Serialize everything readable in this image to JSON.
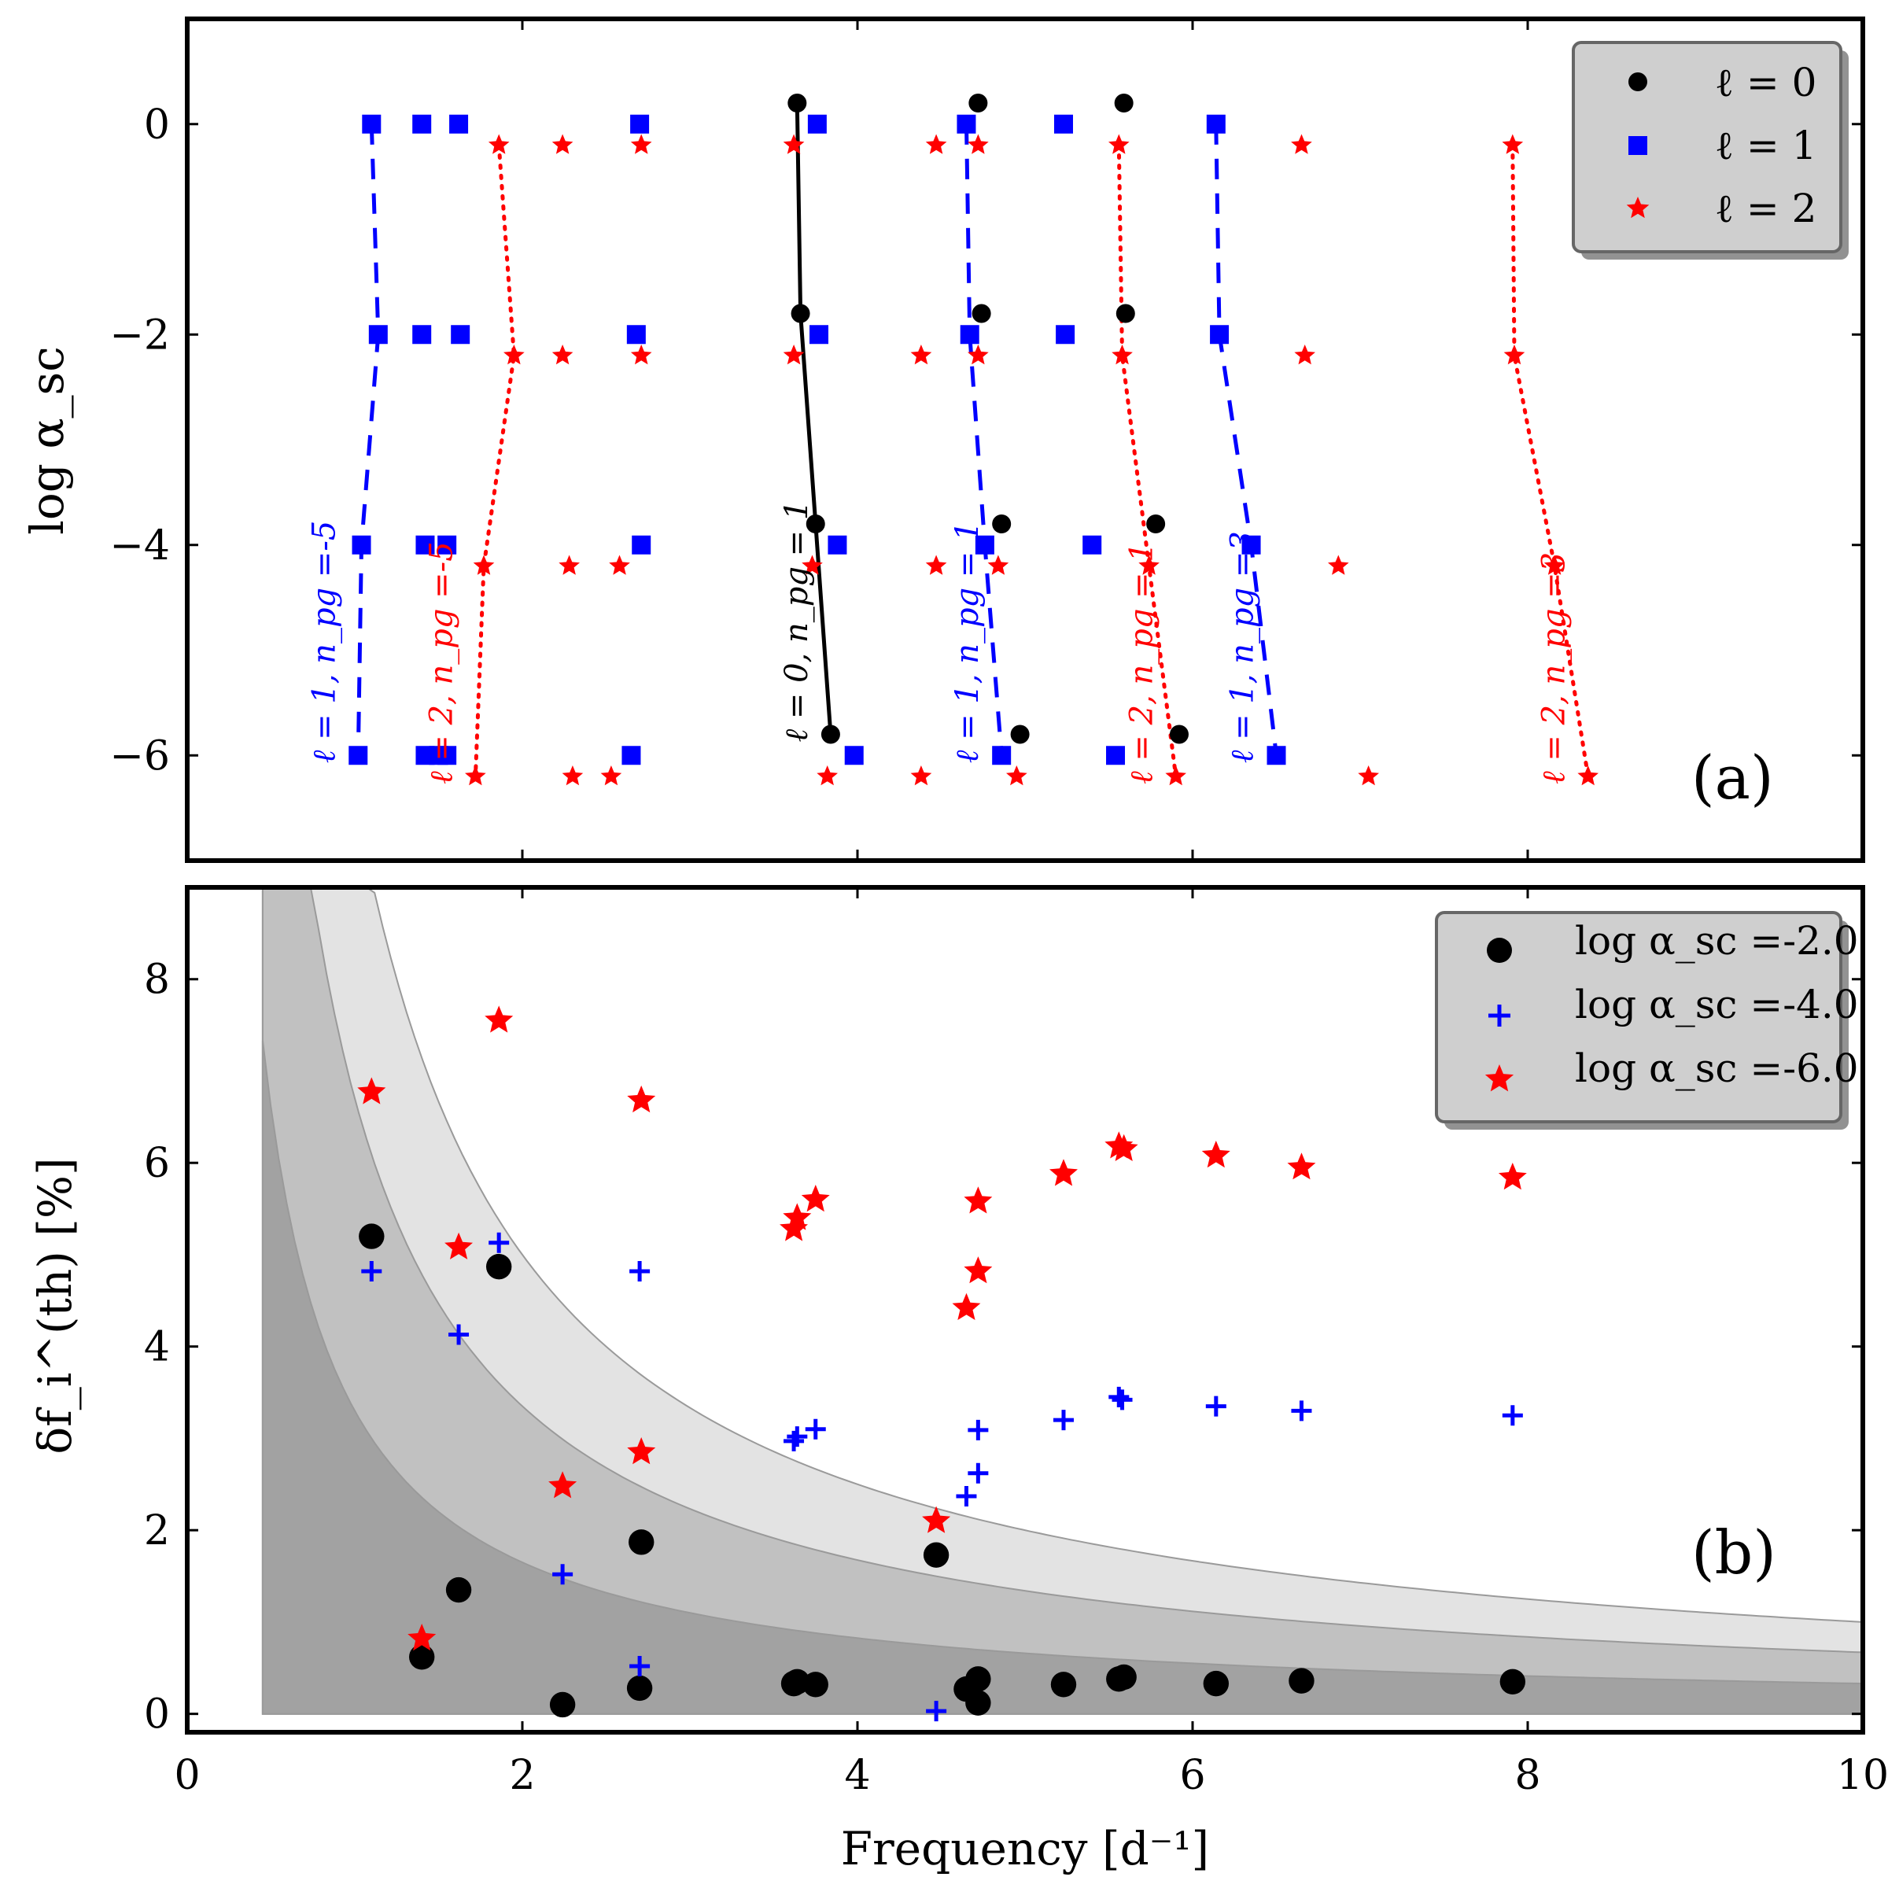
{
  "chart_data": [
    {
      "panel": "a",
      "type": "scatter",
      "tag": "(a)",
      "xlim": [
        0,
        10
      ],
      "ylim": [
        -7,
        1
      ],
      "xticks": [
        0,
        2,
        4,
        6,
        8,
        10
      ],
      "yticks": [
        0,
        -2,
        -4,
        -6
      ],
      "ytick_labels": [
        "0",
        "−2",
        "−4",
        "−6"
      ],
      "ylabel": "log α_sc",
      "legend": [
        "ℓ = 0",
        "ℓ = 1",
        "ℓ = 2"
      ],
      "legend_position": "top-right",
      "series": [
        {
          "name": "ℓ = 0",
          "marker": "circle",
          "color": "#000000",
          "points": [
            [
              3.64,
              0.2
            ],
            [
              4.72,
              0.2
            ],
            [
              5.59,
              0.2
            ],
            [
              3.66,
              -1.8
            ],
            [
              4.74,
              -1.8
            ],
            [
              5.6,
              -1.8
            ],
            [
              3.75,
              -3.8
            ],
            [
              4.86,
              -3.8
            ],
            [
              5.78,
              -3.8
            ],
            [
              3.84,
              -5.8
            ],
            [
              4.97,
              -5.8
            ],
            [
              5.92,
              -5.8
            ]
          ]
        },
        {
          "name": "ℓ = 1",
          "marker": "square",
          "color": "#0000ff",
          "points": [
            [
              1.1,
              0
            ],
            [
              1.4,
              0
            ],
            [
              1.62,
              0
            ],
            [
              2.7,
              0
            ],
            [
              3.76,
              0
            ],
            [
              4.65,
              0
            ],
            [
              5.23,
              0
            ],
            [
              6.14,
              0
            ],
            [
              1.14,
              -2
            ],
            [
              1.4,
              -2
            ],
            [
              1.63,
              -2
            ],
            [
              2.68,
              -2
            ],
            [
              3.77,
              -2
            ],
            [
              4.67,
              -2
            ],
            [
              5.24,
              -2
            ],
            [
              6.16,
              -2
            ],
            [
              1.04,
              -4
            ],
            [
              1.42,
              -4
            ],
            [
              1.55,
              -4
            ],
            [
              2.71,
              -4
            ],
            [
              3.88,
              -4
            ],
            [
              4.76,
              -4
            ],
            [
              5.4,
              -4
            ],
            [
              6.35,
              -4
            ],
            [
              1.02,
              -6
            ],
            [
              1.42,
              -6
            ],
            [
              1.5,
              -6
            ],
            [
              1.55,
              -6
            ],
            [
              2.65,
              -6
            ],
            [
              3.98,
              -6
            ],
            [
              4.86,
              -6
            ],
            [
              5.54,
              -6
            ],
            [
              6.5,
              -6
            ]
          ]
        },
        {
          "name": "ℓ = 2",
          "marker": "star",
          "color": "#ff0000",
          "points": [
            [
              1.86,
              -0.2
            ],
            [
              2.24,
              -0.2
            ],
            [
              2.71,
              -0.2
            ],
            [
              3.62,
              -0.2
            ],
            [
              4.47,
              -0.2
            ],
            [
              4.72,
              -0.2
            ],
            [
              5.56,
              -0.2
            ],
            [
              6.65,
              -0.2
            ],
            [
              7.91,
              -0.2
            ],
            [
              1.95,
              -2.2
            ],
            [
              2.24,
              -2.2
            ],
            [
              2.71,
              -2.2
            ],
            [
              3.62,
              -2.2
            ],
            [
              4.38,
              -2.2
            ],
            [
              4.72,
              -2.2
            ],
            [
              5.58,
              -2.2
            ],
            [
              6.67,
              -2.2
            ],
            [
              7.92,
              -2.2
            ],
            [
              1.77,
              -4.2
            ],
            [
              2.28,
              -4.2
            ],
            [
              2.58,
              -4.2
            ],
            [
              3.73,
              -4.2
            ],
            [
              4.47,
              -4.2
            ],
            [
              4.84,
              -4.2
            ],
            [
              5.74,
              -4.2
            ],
            [
              6.87,
              -4.2
            ],
            [
              8.16,
              -4.2
            ],
            [
              1.72,
              -6.2
            ],
            [
              2.3,
              -6.2
            ],
            [
              2.53,
              -6.2
            ],
            [
              3.82,
              -6.2
            ],
            [
              4.38,
              -6.2
            ],
            [
              4.95,
              -6.2
            ],
            [
              5.9,
              -6.2
            ],
            [
              7.05,
              -6.2
            ],
            [
              8.36,
              -6.2
            ]
          ]
        }
      ],
      "tracks": [
        {
          "label": "ℓ = 0, n_pg = 1",
          "color": "#000000",
          "style": "solid",
          "points": [
            [
              3.64,
              0.2
            ],
            [
              3.66,
              -1.8
            ],
            [
              3.75,
              -3.8
            ],
            [
              3.84,
              -5.8
            ]
          ]
        },
        {
          "label": "ℓ = 1, n_pg =-5",
          "color": "#0000ff",
          "style": "dashed",
          "points": [
            [
              1.1,
              0
            ],
            [
              1.14,
              -2
            ],
            [
              1.04,
              -4
            ],
            [
              1.02,
              -6
            ]
          ]
        },
        {
          "label": "ℓ = 1, n_pg = 1",
          "color": "#0000ff",
          "style": "dashed",
          "points": [
            [
              4.65,
              0
            ],
            [
              4.67,
              -2
            ],
            [
              4.76,
              -4
            ],
            [
              4.86,
              -6
            ]
          ]
        },
        {
          "label": "ℓ = 1, n_pg =3",
          "color": "#0000ff",
          "style": "dashed",
          "points": [
            [
              6.14,
              0
            ],
            [
              6.16,
              -2
            ],
            [
              6.35,
              -4
            ],
            [
              6.5,
              -6
            ]
          ]
        },
        {
          "label": "ℓ = 2, n_pg =-5",
          "color": "#ff0000",
          "style": "dotted",
          "points": [
            [
              1.86,
              -0.2
            ],
            [
              1.95,
              -2.2
            ],
            [
              1.77,
              -4.2
            ],
            [
              1.72,
              -6.2
            ]
          ]
        },
        {
          "label": "ℓ = 2, n_pg = 1",
          "color": "#ff0000",
          "style": "dotted",
          "points": [
            [
              5.56,
              -0.2
            ],
            [
              5.58,
              -2.2
            ],
            [
              5.74,
              -4.2
            ],
            [
              5.9,
              -6.2
            ]
          ]
        },
        {
          "label": "ℓ = 2, n_pg =3",
          "color": "#ff0000",
          "style": "dotted",
          "points": [
            [
              7.91,
              -0.2
            ],
            [
              7.92,
              -2.2
            ],
            [
              8.16,
              -4.2
            ],
            [
              8.36,
              -6.2
            ]
          ]
        }
      ]
    },
    {
      "panel": "b",
      "type": "scatter",
      "tag": "(b)",
      "xlim": [
        0,
        10
      ],
      "ylim": [
        -0.2,
        9
      ],
      "xticks": [
        0,
        2,
        4,
        6,
        8,
        10
      ],
      "yticks": [
        0,
        2,
        4,
        6,
        8
      ],
      "ytick_labels": [
        "0",
        "2",
        "4",
        "6",
        "8"
      ],
      "xlabel": "Frequency [d⁻¹]",
      "ylabel": "δf_i^(th) [%]",
      "legend": [
        "log α_sc =-2.0",
        "log α_sc =-4.0",
        "log α_sc =-6.0"
      ],
      "legend_position": "top-right",
      "bands": {
        "x_start": 0.45,
        "levels": [
          0.033,
          0.067,
          0.1
        ],
        "model": "y = level / x (percent)",
        "colors": [
          "#a2a2a2",
          "#c1c1c1",
          "#e3e3e3"
        ]
      },
      "series": [
        {
          "name": "log α_sc =-2.0",
          "marker": "circle",
          "color": "#000000",
          "points": [
            [
              1.1,
              5.2
            ],
            [
              1.86,
              4.87
            ],
            [
              1.4,
              0.62
            ],
            [
              1.62,
              1.35
            ],
            [
              2.24,
              0.1
            ],
            [
              2.71,
              1.87
            ],
            [
              2.7,
              0.28
            ],
            [
              3.62,
              0.33
            ],
            [
              3.64,
              0.35
            ],
            [
              3.75,
              0.32
            ],
            [
              4.47,
              1.73
            ],
            [
              4.65,
              0.27
            ],
            [
              4.72,
              0.12
            ],
            [
              4.72,
              0.38
            ],
            [
              5.23,
              0.32
            ],
            [
              5.56,
              0.38
            ],
            [
              5.59,
              0.4
            ],
            [
              6.14,
              0.33
            ],
            [
              6.65,
              0.36
            ],
            [
              7.91,
              0.35
            ]
          ]
        },
        {
          "name": "log α_sc =-4.0",
          "marker": "plus",
          "color": "#0000ff",
          "points": [
            [
              1.1,
              4.82
            ],
            [
              1.86,
              5.13
            ],
            [
              1.62,
              4.13
            ],
            [
              2.24,
              1.52
            ],
            [
              2.7,
              4.82
            ],
            [
              2.7,
              0.52
            ],
            [
              3.62,
              2.97
            ],
            [
              3.64,
              3.02
            ],
            [
              3.75,
              3.1
            ],
            [
              4.47,
              0.03
            ],
            [
              4.65,
              2.37
            ],
            [
              4.72,
              2.62
            ],
            [
              4.72,
              3.09
            ],
            [
              5.23,
              3.2
            ],
            [
              5.56,
              3.45
            ],
            [
              5.58,
              3.42
            ],
            [
              6.14,
              3.35
            ],
            [
              6.65,
              3.3
            ],
            [
              7.91,
              3.25
            ]
          ]
        },
        {
          "name": "log α_sc =-6.0",
          "marker": "star",
          "color": "#ff0000",
          "points": [
            [
              1.1,
              6.77
            ],
            [
              1.86,
              7.55
            ],
            [
              1.62,
              5.08
            ],
            [
              1.4,
              0.82
            ],
            [
              2.24,
              2.48
            ],
            [
              2.71,
              2.85
            ],
            [
              2.71,
              6.68
            ],
            [
              3.62,
              5.28
            ],
            [
              3.64,
              5.4
            ],
            [
              3.75,
              5.6
            ],
            [
              4.47,
              2.1
            ],
            [
              4.65,
              4.42
            ],
            [
              4.72,
              4.82
            ],
            [
              4.72,
              5.58
            ],
            [
              5.23,
              5.88
            ],
            [
              5.56,
              6.18
            ],
            [
              5.59,
              6.15
            ],
            [
              6.14,
              6.08
            ],
            [
              6.65,
              5.95
            ],
            [
              7.91,
              5.84
            ]
          ]
        }
      ]
    }
  ]
}
